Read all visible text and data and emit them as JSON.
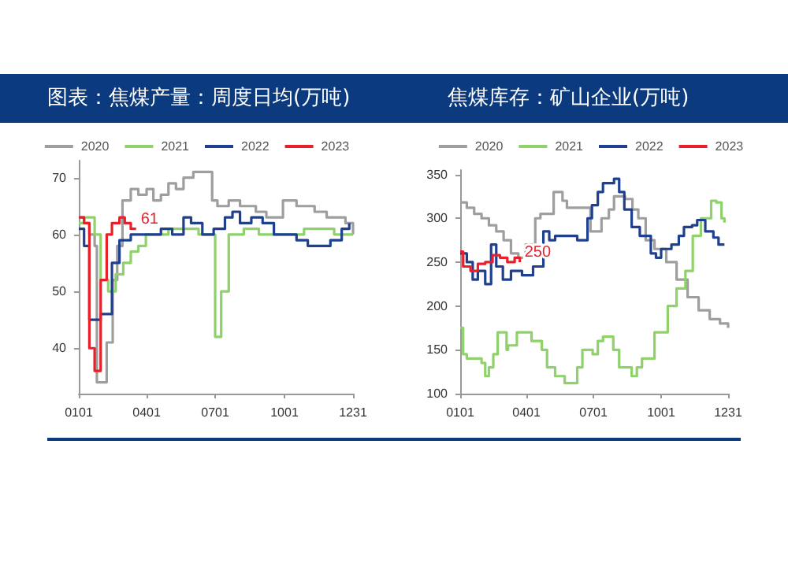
{
  "chart_data": [
    {
      "type": "step",
      "title": "图表：焦煤产量：周度日均(万吨)",
      "xlim": [
        "--01-01",
        "--12-31"
      ],
      "xticks": [
        {
          "value": "--01-01",
          "label": "0101"
        },
        {
          "value": "--04-01",
          "label": "0401"
        },
        {
          "value": "--07-01",
          "label": "0701"
        },
        {
          "value": "--10-01",
          "label": "1001"
        },
        {
          "value": "--12-31",
          "label": "1231"
        }
      ],
      "ylim": [
        32,
        73
      ],
      "yticks": [
        40,
        50,
        60,
        70
      ],
      "legend": "top",
      "marker": "none",
      "line_style": "solid",
      "annotations": [
        {
          "text": "61",
          "x": "--03-18",
          "y": 61
        }
      ],
      "series": [
        {
          "name": "2020",
          "color": "#9e9e9e",
          "x": [
            "--01-01",
            "--01-08",
            "--01-15",
            "--01-22",
            "--01-25",
            "--02-07",
            "--02-15",
            "--02-21",
            "--02-28",
            "--03-11",
            "--03-21",
            "--04-01",
            "--04-10",
            "--04-20",
            "--04-30",
            "--05-10",
            "--05-20",
            "--06-02",
            "--06-27",
            "--07-04",
            "--07-19",
            "--08-03",
            "--08-24",
            "--09-07",
            "--09-29",
            "--10-17",
            "--11-10",
            "--11-26",
            "--12-07",
            "--12-21",
            "--12-31"
          ],
          "values": [
            63,
            62,
            60,
            58,
            34,
            41,
            52,
            58,
            66,
            68,
            67,
            68,
            66,
            67,
            69,
            68,
            70,
            71,
            66,
            65,
            66,
            65,
            64,
            63,
            66,
            65,
            64,
            63,
            63,
            62,
            60
          ]
        },
        {
          "name": "2021",
          "color": "#8fd16a",
          "x": [
            "--01-01",
            "--01-08",
            "--01-15",
            "--01-22",
            "--01-30",
            "--02-09",
            "--02-19",
            "--03-01",
            "--03-11",
            "--03-21",
            "--03-31",
            "--04-10",
            "--04-30",
            "--05-20",
            "--06-09",
            "--06-24",
            "--07-01",
            "--07-09",
            "--07-19",
            "--08-08",
            "--08-28",
            "--09-17",
            "--10-07",
            "--10-27",
            "--11-16",
            "--12-06",
            "--12-31"
          ],
          "values": [
            62,
            63,
            63,
            60,
            52,
            50,
            53,
            55,
            57,
            58,
            60,
            60,
            61,
            61,
            60,
            60,
            42,
            50,
            60,
            61,
            60,
            60,
            60,
            61,
            61,
            60,
            60
          ]
        },
        {
          "name": "2022",
          "color": "#1f3f8f",
          "x": [
            "--01-01",
            "--01-08",
            "--01-15",
            "--01-30",
            "--02-14",
            "--02-24",
            "--03-11",
            "--03-31",
            "--04-20",
            "--05-05",
            "--05-20",
            "--05-30",
            "--06-14",
            "--06-29",
            "--07-14",
            "--07-24",
            "--08-03",
            "--08-18",
            "--09-02",
            "--09-17",
            "--10-02",
            "--10-17",
            "--11-01",
            "--11-16",
            "--12-01",
            "--12-16",
            "--12-26"
          ],
          "values": [
            61,
            58,
            45,
            46,
            55,
            59,
            60,
            60,
            61,
            60,
            63,
            62,
            60,
            61,
            63,
            64,
            62,
            63,
            62,
            60,
            60,
            59,
            58,
            58,
            59,
            61,
            62
          ]
        },
        {
          "name": "2023",
          "color": "#e8202a",
          "x": [
            "--01-01",
            "--01-08",
            "--01-15",
            "--01-22",
            "--01-30",
            "--02-07",
            "--02-14",
            "--02-24",
            "--03-03",
            "--03-11",
            "--03-18"
          ],
          "values": [
            63,
            62,
            40,
            36,
            52,
            60,
            62,
            63,
            62,
            61,
            61
          ]
        }
      ]
    },
    {
      "type": "step",
      "title": "焦煤库存：矿山企业(万吨)",
      "xlim": [
        "--01-01",
        "--12-31"
      ],
      "xticks": [
        {
          "value": "--01-01",
          "label": "0101"
        },
        {
          "value": "--04-01",
          "label": "0401"
        },
        {
          "value": "--07-01",
          "label": "0701"
        },
        {
          "value": "--10-01",
          "label": "1001"
        },
        {
          "value": "--12-31",
          "label": "1231"
        }
      ],
      "ylim": [
        100,
        355
      ],
      "yticks": [
        100,
        150,
        200,
        250,
        300,
        350
      ],
      "legend": "top",
      "marker": "none",
      "line_style": "solid",
      "annotations": [
        {
          "text": "250",
          "x": "--03-23",
          "y": 250
        }
      ],
      "series": [
        {
          "name": "2020",
          "color": "#9e9e9e",
          "x": [
            "--01-01",
            "--01-10",
            "--01-20",
            "--01-30",
            "--02-09",
            "--02-19",
            "--03-01",
            "--03-11",
            "--03-21",
            "--03-31",
            "--04-13",
            "--04-20",
            "--05-08",
            "--05-20",
            "--05-26",
            "--06-23",
            "--06-27",
            "--07-12",
            "--07-22",
            "--07-29",
            "--08-13",
            "--08-23",
            "--08-31",
            "--09-10",
            "--09-22",
            "--10-08",
            "--10-22",
            "--11-06",
            "--11-21",
            "--12-06",
            "--12-20",
            "--12-31"
          ],
          "values": [
            318,
            312,
            305,
            300,
            292,
            285,
            275,
            260,
            255,
            270,
            300,
            305,
            330,
            320,
            312,
            312,
            285,
            300,
            310,
            325,
            322,
            310,
            300,
            275,
            265,
            250,
            230,
            210,
            195,
            185,
            180,
            175
          ]
        },
        {
          "name": "2021",
          "color": "#8fd16a",
          "x": [
            "--01-01",
            "--01-05",
            "--01-10",
            "--01-30",
            "--02-04",
            "--02-09",
            "--02-15",
            "--02-21",
            "--03-05",
            "--03-07",
            "--03-19",
            "--04-08",
            "--04-22",
            "--04-29",
            "--05-10",
            "--05-23",
            "--06-02",
            "--06-09",
            "--06-16",
            "--06-30",
            "--07-07",
            "--07-14",
            "--07-21",
            "--07-28",
            "--08-05",
            "--08-22",
            "--08-29",
            "--09-05",
            "--09-19",
            "--09-22",
            "--10-10",
            "--10-22",
            "--11-03",
            "--11-13",
            "--11-24",
            "--12-08",
            "--12-15",
            "--12-22",
            "--12-26"
          ],
          "values": [
            175,
            145,
            140,
            135,
            120,
            130,
            145,
            170,
            150,
            155,
            170,
            160,
            150,
            130,
            120,
            112,
            112,
            130,
            150,
            145,
            160,
            165,
            165,
            150,
            130,
            120,
            130,
            140,
            140,
            170,
            200,
            220,
            240,
            280,
            300,
            320,
            318,
            300,
            295
          ]
        },
        {
          "name": "2022",
          "color": "#1f3f8f",
          "x": [
            "--01-01",
            "--01-10",
            "--01-18",
            "--01-25",
            "--02-04",
            "--02-12",
            "--02-19",
            "--02-28",
            "--03-11",
            "--03-26",
            "--04-10",
            "--04-24",
            "--05-02",
            "--05-10",
            "--06-09",
            "--06-23",
            "--06-29",
            "--07-07",
            "--07-14",
            "--07-29",
            "--08-05",
            "--08-12",
            "--08-22",
            "--09-02",
            "--09-17",
            "--09-24",
            "--10-01",
            "--10-15",
            "--10-25",
            "--11-01",
            "--11-12",
            "--11-19",
            "--11-30",
            "--12-11",
            "--12-18",
            "--12-26"
          ],
          "values": [
            260,
            250,
            230,
            240,
            225,
            270,
            245,
            230,
            240,
            235,
            245,
            285,
            275,
            280,
            275,
            300,
            315,
            330,
            340,
            345,
            330,
            310,
            290,
            280,
            260,
            255,
            265,
            270,
            280,
            290,
            292,
            298,
            285,
            278,
            270,
            270
          ]
        },
        {
          "name": "2023",
          "color": "#e8202a",
          "x": [
            "--01-01",
            "--01-05",
            "--01-15",
            "--01-25",
            "--02-04",
            "--02-14",
            "--02-24",
            "--03-06",
            "--03-16",
            "--03-23"
          ],
          "values": [
            262,
            245,
            240,
            248,
            250,
            258,
            255,
            250,
            255,
            250
          ]
        }
      ]
    }
  ]
}
